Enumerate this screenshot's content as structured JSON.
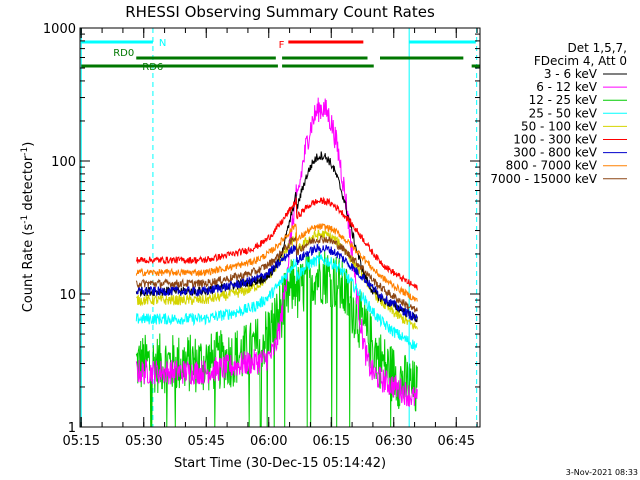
{
  "chart_data": {
    "type": "line",
    "title": "RHESSI Observing Summary Count Rates",
    "xlabel": "Start Time (30-Dec-15 05:14:42)",
    "ylabel_main": "Count Rate (s",
    "ylabel_sup1": "-1",
    "ylabel_mid": " detector",
    "ylabel_sup2": "-1",
    "ylabel_end": ")",
    "y_scale": "log",
    "ylim": [
      1,
      1000
    ],
    "xlim_minutes": [
      0,
      96
    ],
    "x_ticks": [
      {
        "t": 0.3,
        "label": "05:15"
      },
      {
        "t": 15.3,
        "label": "05:30"
      },
      {
        "t": 30.3,
        "label": "05:45"
      },
      {
        "t": 45.3,
        "label": "06:00"
      },
      {
        "t": 60.3,
        "label": "06:15"
      },
      {
        "t": 75.3,
        "label": "06:30"
      },
      {
        "t": 90.3,
        "label": "06:45"
      }
    ],
    "y_ticks": [
      {
        "v": 1,
        "label": "1"
      },
      {
        "v": 10,
        "label": "10"
      },
      {
        "v": 100,
        "label": "100"
      },
      {
        "v": 1000,
        "label": "1000"
      }
    ],
    "legend_header": [
      "Det 1,5,7,",
      "FDecim 4, Att 0"
    ],
    "legend_placement": "right",
    "series": [
      {
        "name": "3 - 6 keV",
        "color": "#000000",
        "base": 10.5,
        "peak": 110,
        "noise": 0.08
      },
      {
        "name": "6 - 12 keV",
        "color": "#ff00ff",
        "base": 2.6,
        "peak": 250,
        "noise": 0.22
      },
      {
        "name": "12 - 25 keV",
        "color": "#00cc00",
        "base": 3.0,
        "peak": 14,
        "noise": 0.35
      },
      {
        "name": "25 - 50 keV",
        "color": "#00ffff",
        "base": 6.5,
        "peak": 18,
        "noise": 0.1
      },
      {
        "name": "50 - 100 keV",
        "color": "#d4d400",
        "base": 9.0,
        "peak": 28,
        "noise": 0.09
      },
      {
        "name": "100 - 300 keV",
        "color": "#ff0000",
        "base": 18,
        "peak": 50,
        "noise": 0.06
      },
      {
        "name": "300 - 800 keV",
        "color": "#0000cc",
        "base": 10.5,
        "peak": 22,
        "noise": 0.08
      },
      {
        "name": "800 - 7000 keV",
        "color": "#ff8000",
        "base": 14.5,
        "peak": 32,
        "noise": 0.06
      },
      {
        "name": "7000 - 15000 keV",
        "color": "#8b4513",
        "base": 12,
        "peak": 26,
        "noise": 0.07
      }
    ],
    "flags": [
      {
        "label": "N",
        "color": "#00ffff",
        "row": "top",
        "segments": [
          [
            0.3,
            17.5
          ],
          [
            79,
            95
          ]
        ]
      },
      {
        "label": "F",
        "color": "#ff0000",
        "row": "top",
        "segments": [
          [
            50,
            68
          ]
        ]
      },
      {
        "label": "RD0",
        "color": "#007700",
        "row": "mid",
        "segments": [
          [
            13.5,
            47
          ],
          [
            48.5,
            69
          ],
          [
            72,
            92
          ]
        ]
      },
      {
        "label": "RD6",
        "color": "#007700",
        "row": "low",
        "segments": [
          [
            0.3,
            47.5
          ],
          [
            48.5,
            70.5
          ],
          [
            94,
            96
          ]
        ]
      }
    ],
    "vlines": [
      {
        "t": 0.3,
        "color": "#00ffff",
        "style": "solid"
      },
      {
        "t": 17.5,
        "color": "#00ffff",
        "style": "dashed"
      },
      {
        "t": 79,
        "color": "#00ffff",
        "style": "solid"
      },
      {
        "t": 95.2,
        "color": "#00ffff",
        "style": "dashed"
      }
    ],
    "data_start_min": 13.5,
    "data_end_min": 81,
    "peak_min": 58,
    "footer_date": "3-Nov-2021 08:33"
  }
}
